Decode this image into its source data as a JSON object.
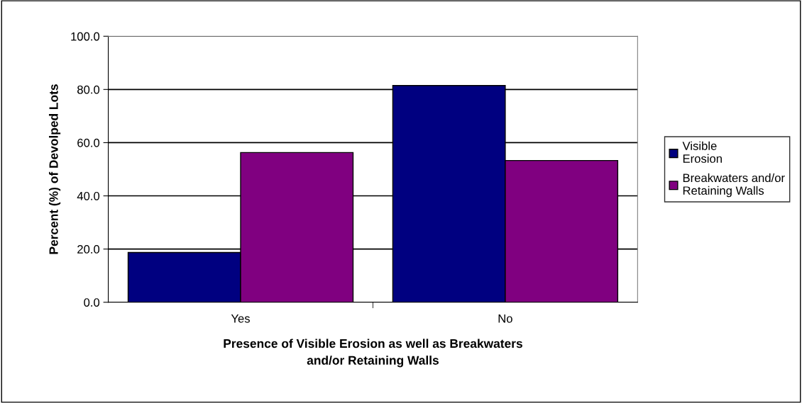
{
  "chart_data": {
    "type": "bar",
    "xlabel": "Presence of Visible Erosion as well as Breakwaters\nand/or Retaining Walls",
    "ylabel": "Percent (%) of Devolped Lots",
    "categories": [
      "Yes",
      "No"
    ],
    "series": [
      {
        "name": "Visible\nErosion",
        "color": "#000080",
        "values": [
          18.7,
          81.5
        ]
      },
      {
        "name": "Breakwaters and/or\nRetaining Walls",
        "color": "#800080",
        "values": [
          56.3,
          53.3
        ]
      }
    ],
    "ylim": [
      0,
      100
    ],
    "yticks": [
      {
        "value": 0,
        "label": "0.0"
      },
      {
        "value": 20,
        "label": "20.0"
      },
      {
        "value": 40,
        "label": "40.0"
      },
      {
        "value": 60,
        "label": "60.0"
      },
      {
        "value": 80,
        "label": "80.0"
      },
      {
        "value": 100,
        "label": "100.0"
      }
    ],
    "grid": "y",
    "legend": "right"
  }
}
